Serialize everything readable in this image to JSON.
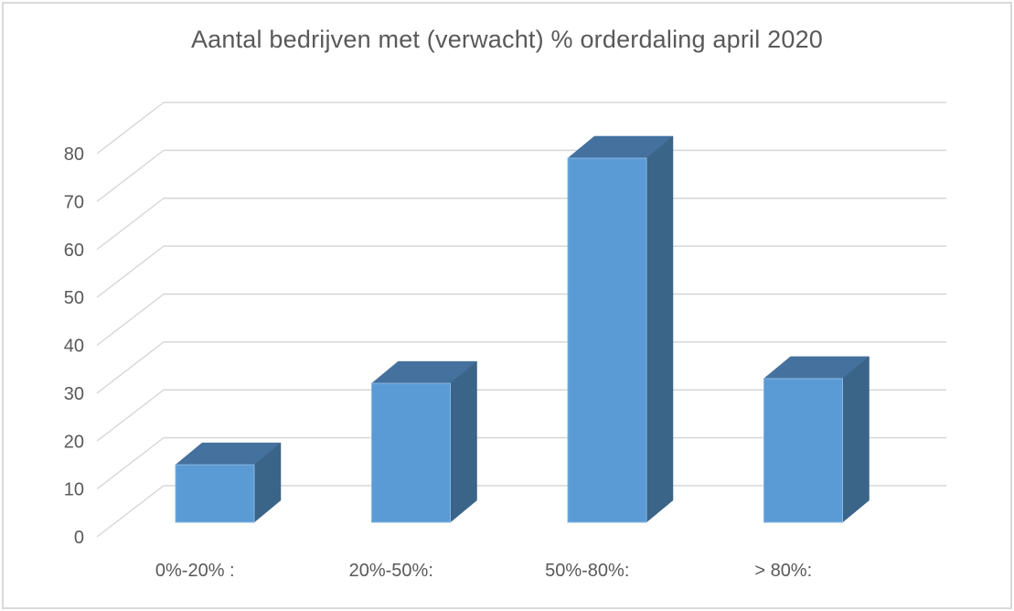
{
  "window": {
    "background_color": "#ffffff",
    "frame_border_color": "#d9d9d9"
  },
  "chart_data": {
    "type": "bar",
    "variant": "3d-clustered-column",
    "title": "Aantal bedrijven met (verwacht) % orderdaling april 2020",
    "categories": [
      "0%-20% :",
      "20%-50%:",
      "50%-80%:",
      "> 80%:"
    ],
    "values": [
      12,
      29,
      76,
      30
    ],
    "xlabel": "",
    "ylabel": "",
    "ylim": [
      0,
      80
    ],
    "ytick_interval": 10,
    "yticks": [
      0,
      10,
      20,
      30,
      40,
      50,
      60,
      70,
      80
    ],
    "grid": true,
    "legend_position": "none",
    "colors": {
      "bar_front": "#5b9bd5",
      "bar_top": "#44719e",
      "bar_side": "#3b6489",
      "bar_edge_highlight": "#8ab7e0",
      "gridline": "#d6d6d6",
      "text": "#595959"
    }
  }
}
